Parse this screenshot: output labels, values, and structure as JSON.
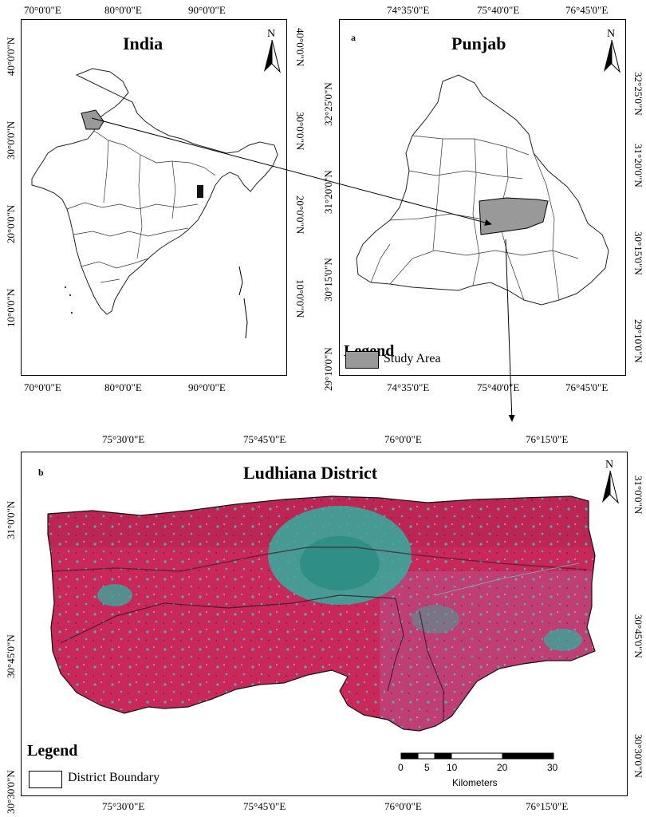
{
  "india": {
    "title": "India",
    "top_ticks": [
      "70°0'0\"E",
      "80°0'0\"E",
      "90°0'0\"E"
    ],
    "bottom_ticks": [
      "70°0'0\"E",
      "80°0'0\"E",
      "90°0'0\"E"
    ],
    "left_ticks": [
      "40°0'0\"N",
      "30°0'0\"N",
      "20°0'0\"N",
      "10°0'0\"N"
    ],
    "right_ticks": [
      "40°0'0\"N",
      "30°0'0\"N",
      "20°0'0\"N",
      "10°0'0\"N"
    ],
    "north": "N"
  },
  "punjab": {
    "letter": "a",
    "title": "Punjab",
    "top_ticks": [
      "74°35'0\"E",
      "75°40'0\"E",
      "76°45'0\"E"
    ],
    "bottom_ticks": [
      "74°35'0\"E",
      "75°40'0\"E",
      "76°45'0\"E"
    ],
    "left_ticks": [
      "32°25'0\"N",
      "31°20'0\"N",
      "30°15'0\"N",
      "29°10'0\"N"
    ],
    "right_ticks": [
      "32°25'0\"N",
      "31°20'0\"N",
      "30°15'0\"N",
      "29°10'0\"N"
    ],
    "north": "N",
    "legend_title": "Legend",
    "legend_item": "Study Area",
    "study_area_color": "#999999"
  },
  "ludhiana": {
    "letter": "b",
    "title": "Ludhiana District",
    "top_ticks": [
      "75°30'0\"E",
      "75°45'0\"E",
      "76°0'0\"E",
      "76°15'0\"E"
    ],
    "bottom_ticks": [
      "75°30'0\"E",
      "75°45'0\"E",
      "76°0'0\"E",
      "76°15'0\"E"
    ],
    "left_ticks": [
      "31°0'0\"N",
      "30°45'0\"N",
      "30°30'0\"N"
    ],
    "right_ticks": [
      "31°0'0\"N",
      "30°45'0\"N",
      "30°30'0\"N"
    ],
    "north": "N",
    "legend_title": "Legend",
    "legend_item": "District Boundary",
    "scale_labels": [
      "0",
      "5",
      "10",
      "20",
      "30"
    ],
    "scale_unit": "Kilometers",
    "colors": {
      "vegetation": "#c8285a",
      "urban": "#3aa79a"
    }
  }
}
